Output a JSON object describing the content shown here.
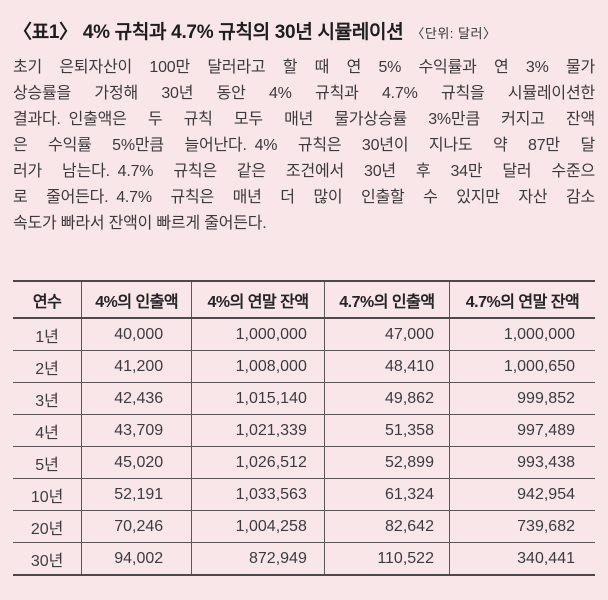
{
  "header": {
    "title": "〈표1〉 4% 규칙과 4.7% 규칙의 30년 시뮬레이션",
    "unit": "〈단위: 달러〉"
  },
  "intro": {
    "lines": [
      "초기 은퇴자산이 100만 달러라고 할 때 연 5% 수익률과 연 3% 물가",
      "상승률을 가정해 30년 동안 4% 규칙과 4.7% 규칙을 시뮬레이션한",
      "결과다. 인출액은 두 규칙 모두 매년 물가상승률 3%만큼 커지고 잔액",
      "은 수익률 5%만큼 늘어난다. 4% 규칙은 30년이 지나도 약 87만 달",
      "러가 남는다. 4.7% 규칙은 같은 조건에서 30년 후 34만 달러 수준으",
      "로 줄어든다. 4.7% 규칙은 매년 더 많이 인출할 수 있지만 자산 감소",
      "속도가 빠라서 잔액이 빠르게 줄어든다."
    ]
  },
  "table": {
    "headers": [
      "연수",
      "4%의 인출액",
      "4%의 연말 잔액",
      "4.7%의 인출액",
      "4.7%의 연말 잔액"
    ],
    "rows": [
      [
        "1년",
        "40,000",
        "1,000,000",
        "47,000",
        "1,000,000"
      ],
      [
        "2년",
        "41,200",
        "1,008,000",
        "48,410",
        "1,000,650"
      ],
      [
        "3년",
        "42,436",
        "1,015,140",
        "49,862",
        "999,852"
      ],
      [
        "4년",
        "43,709",
        "1,021,339",
        "51,358",
        "997,489"
      ],
      [
        "5년",
        "45,020",
        "1,026,512",
        "52,899",
        "993,438"
      ],
      [
        "10년",
        "52,191",
        "1,033,563",
        "61,324",
        "942,954"
      ],
      [
        "20년",
        "70,246",
        "1,004,258",
        "82,642",
        "739,682"
      ],
      [
        "30년",
        "94,002",
        "872,949",
        "110,522",
        "340,441"
      ]
    ]
  },
  "colors": {
    "background": "#f8e6e9",
    "text": "#3a3a3a",
    "border": "#4a4a4a"
  }
}
